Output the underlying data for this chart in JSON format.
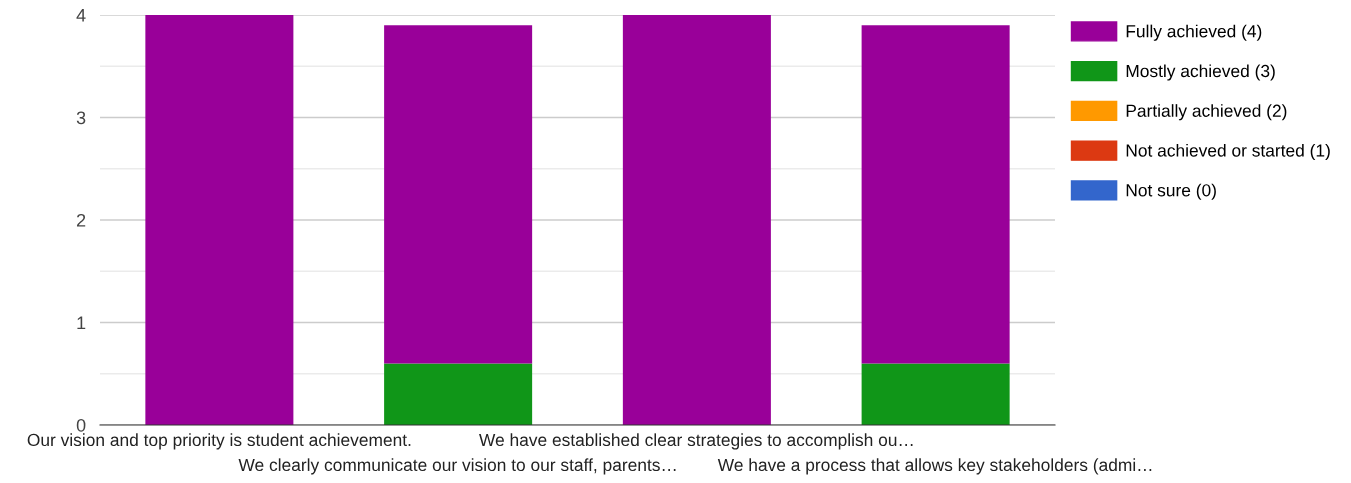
{
  "chart_data": {
    "type": "bar",
    "stacked": true,
    "categories": [
      "Our vision and top priority is student achievement.",
      "We clearly communicate our vision to our staff, parents…",
      "We have established clear strategies to accomplish ou…",
      "We have a process that allows key stakeholders (admi…"
    ],
    "series": [
      {
        "name": "Not sure (0)",
        "color": "#3366cc",
        "values": [
          0,
          0,
          0,
          0
        ]
      },
      {
        "name": "Not achieved or started (1)",
        "color": "#dc3912",
        "values": [
          0,
          0,
          0,
          0
        ]
      },
      {
        "name": "Partially achieved (2)",
        "color": "#ff9900",
        "values": [
          0,
          0,
          0,
          0
        ]
      },
      {
        "name": "Mostly achieved (3)",
        "color": "#109618",
        "values": [
          0,
          0.6,
          0,
          0.6
        ]
      },
      {
        "name": "Fully achieved (4)",
        "color": "#990099",
        "values": [
          4,
          3.3,
          4,
          3.3
        ]
      }
    ],
    "ylim": [
      0,
      4
    ],
    "yticks": [
      0,
      {
        "value": 0.5,
        "label": null
      },
      1,
      {
        "value": 1.5,
        "label": null
      },
      2,
      {
        "value": 2.5,
        "label": null
      },
      3,
      {
        "value": 3.5,
        "label": null
      },
      4
    ],
    "grid": "y",
    "legend": "right"
  }
}
